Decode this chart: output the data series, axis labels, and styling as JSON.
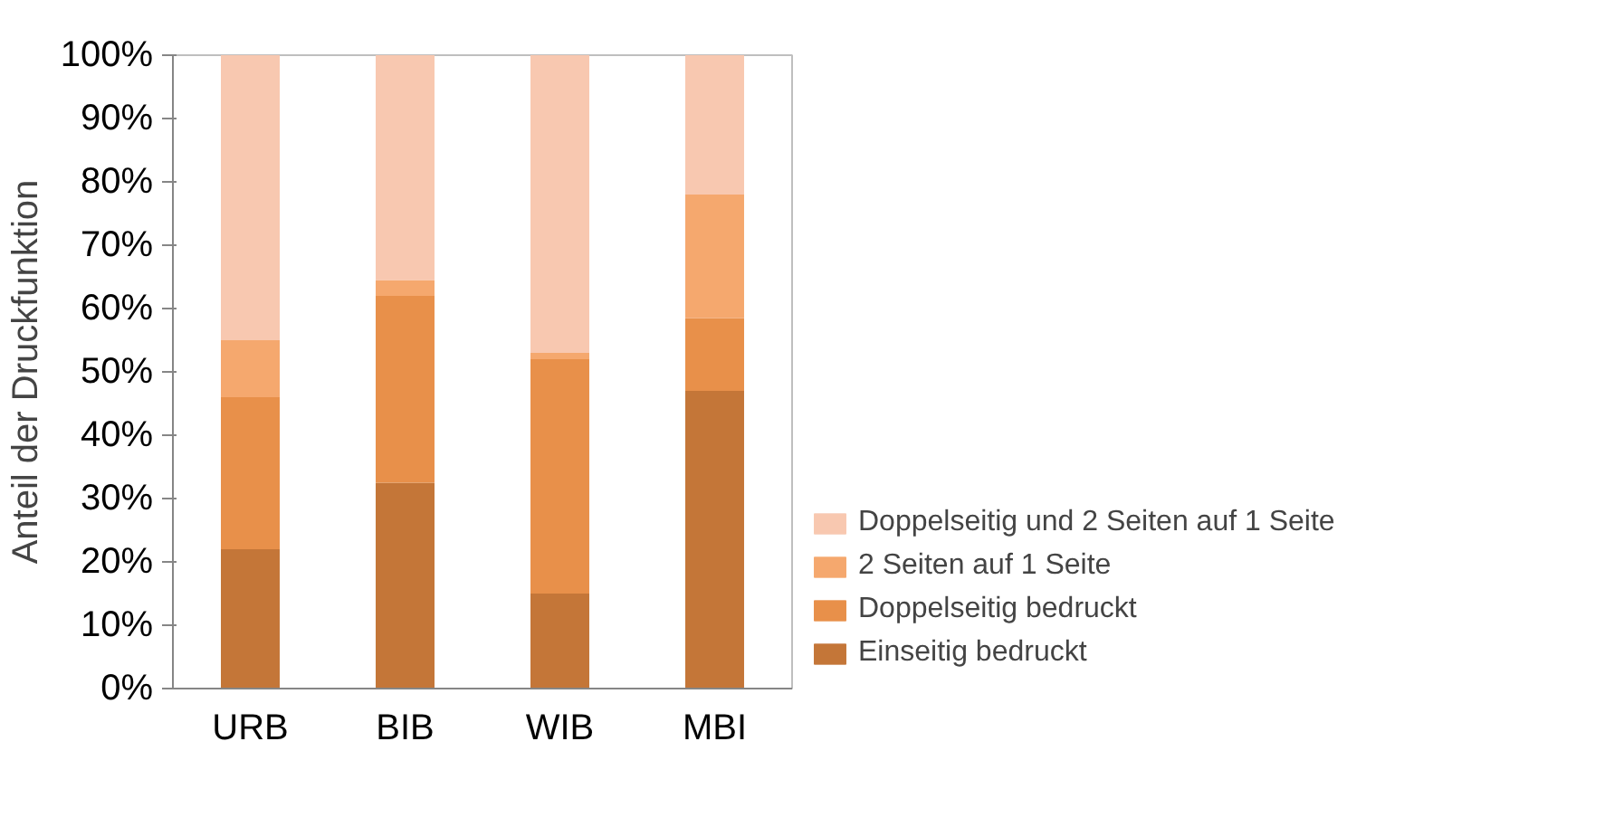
{
  "chart_data": {
    "type": "bar",
    "stacked": true,
    "ylabel": "Anteil der Druckfunktion",
    "categories": [
      "URB",
      "BIB",
      "WIB",
      "MBI"
    ],
    "series": [
      {
        "name": "Einseitig bedruckt",
        "color": "#c47638",
        "values": [
          22,
          32.5,
          15,
          47
        ]
      },
      {
        "name": "Doppelseitig bedruckt",
        "color": "#e8904a",
        "values": [
          24,
          29.5,
          37,
          11.5
        ]
      },
      {
        "name": "2 Seiten auf 1 Seite",
        "color": "#f5a86e",
        "values": [
          9,
          2.5,
          1,
          19.5
        ]
      },
      {
        "name": "Doppelseitig und 2 Seiten auf 1 Seite",
        "color": "#f8c8b0",
        "values": [
          45,
          35.5,
          47,
          22
        ]
      }
    ],
    "ylim": [
      0,
      100
    ],
    "yticks": [
      {
        "value": 0,
        "label": "0%"
      },
      {
        "value": 10,
        "label": "10%"
      },
      {
        "value": 20,
        "label": "20%"
      },
      {
        "value": 30,
        "label": "30%"
      },
      {
        "value": 40,
        "label": "40%"
      },
      {
        "value": 50,
        "label": "50%"
      },
      {
        "value": 60,
        "label": "60%"
      },
      {
        "value": 70,
        "label": "70%"
      },
      {
        "value": 80,
        "label": "80%"
      },
      {
        "value": 90,
        "label": "90%"
      },
      {
        "value": 100,
        "label": "100%"
      }
    ],
    "grid": false,
    "legend": "right"
  }
}
